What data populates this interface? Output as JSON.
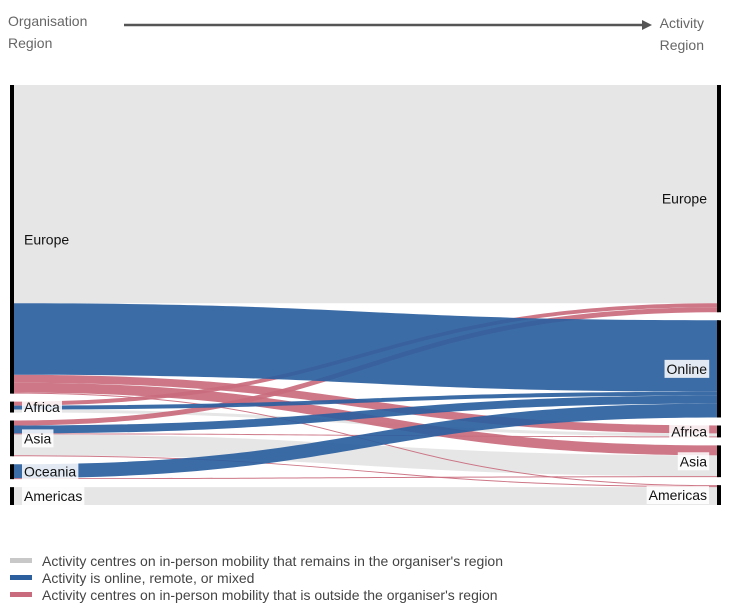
{
  "header": {
    "left_line1": "Organisation",
    "left_line2": "Region",
    "right_line1": "Activity",
    "right_line2": "Region"
  },
  "colors": {
    "same_region": "#c8c8c8",
    "online": "#2b5f9e",
    "outside_region": "#c96b7d",
    "node": "#000000"
  },
  "legend": [
    {
      "key": "same_region",
      "label": "Activity centres on in-person mobility that remains in the organiser's region"
    },
    {
      "key": "online",
      "label": "Activity is online, remote, or mixed"
    },
    {
      "key": "outside_region",
      "label": "Activity centres on in-person mobility that is outside the organiser's region"
    }
  ],
  "chart_data": {
    "type": "sankey",
    "source_nodes": [
      "Europe",
      "Africa",
      "Asia",
      "Oceania",
      "Americas"
    ],
    "target_nodes": [
      "Europe",
      "Online",
      "Africa",
      "Asia",
      "Americas"
    ],
    "links": [
      {
        "source": "Europe",
        "target": "Europe",
        "value": 220,
        "kind": "same_region"
      },
      {
        "source": "Europe",
        "target": "Online",
        "value": 72,
        "kind": "online"
      },
      {
        "source": "Europe",
        "target": "Africa",
        "value": 8,
        "kind": "outside_region"
      },
      {
        "source": "Europe",
        "target": "Asia",
        "value": 10,
        "kind": "outside_region"
      },
      {
        "source": "Europe",
        "target": "Americas",
        "value": 1,
        "kind": "outside_region"
      },
      {
        "source": "Africa",
        "target": "Europe",
        "value": 4,
        "kind": "outside_region"
      },
      {
        "source": "Africa",
        "target": "Online",
        "value": 4,
        "kind": "online"
      },
      {
        "source": "Africa",
        "target": "Africa",
        "value": 3,
        "kind": "same_region"
      },
      {
        "source": "Asia",
        "target": "Europe",
        "value": 5,
        "kind": "outside_region"
      },
      {
        "source": "Asia",
        "target": "Online",
        "value": 8,
        "kind": "online"
      },
      {
        "source": "Asia",
        "target": "Africa",
        "value": 1,
        "kind": "outside_region"
      },
      {
        "source": "Asia",
        "target": "Asia",
        "value": 21,
        "kind": "same_region"
      },
      {
        "source": "Asia",
        "target": "Americas",
        "value": 1,
        "kind": "outside_region"
      },
      {
        "source": "Oceania",
        "target": "Online",
        "value": 14,
        "kind": "online"
      },
      {
        "source": "Oceania",
        "target": "Asia",
        "value": 1,
        "kind": "outside_region"
      },
      {
        "source": "Americas",
        "target": "Americas",
        "value": 18,
        "kind": "same_region"
      }
    ]
  }
}
